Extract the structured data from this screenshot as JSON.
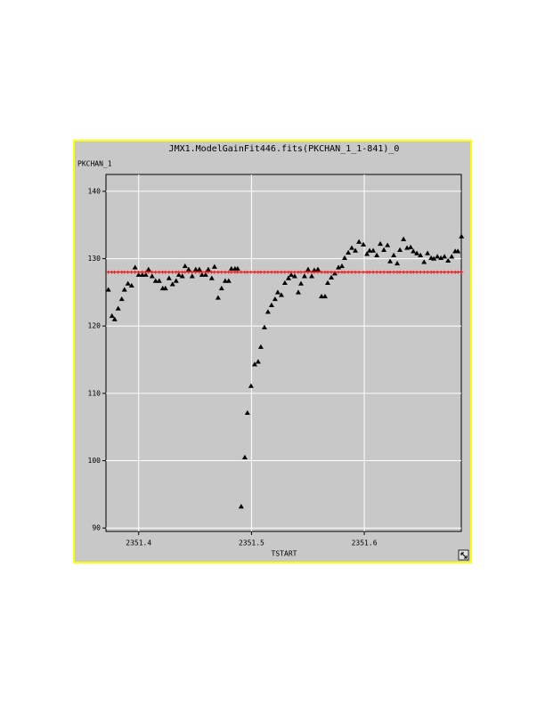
{
  "chart_data": {
    "type": "scatter",
    "title": "JMX1.ModelGainFit446.fits(PKCHAN_1_1-841)_0",
    "ylabel": "PKCHAN_1",
    "xlabel": "TSTART",
    "x": [
      2351.3731,
      2351.3763,
      2351.3787,
      2351.3818,
      2351.385,
      2351.3874,
      2351.3905,
      2351.3937,
      2351.3968,
      2351.4,
      2351.4032,
      2351.4063,
      2351.4087,
      2351.4119,
      2351.415,
      2351.4182,
      2351.4213,
      2351.4237,
      2351.4269,
      2351.43,
      2351.4332,
      2351.4356,
      2351.4387,
      2351.4411,
      2351.4443,
      2351.4474,
      2351.4506,
      2351.4538,
      2351.4561,
      2351.4593,
      2351.4617,
      2351.4648,
      2351.4672,
      2351.4704,
      2351.4735,
      2351.4767,
      2351.4798,
      2351.4822,
      2351.4854,
      2351.4877,
      2351.4909,
      2351.4941,
      2351.4964,
      2351.4996,
      2351.5028,
      2351.5059,
      2351.5083,
      2351.5115,
      2351.5146,
      2351.5178,
      2351.5209,
      2351.5233,
      2351.5265,
      2351.5296,
      2351.5328,
      2351.5352,
      2351.5383,
      2351.5415,
      2351.5439,
      2351.547,
      2351.5502,
      2351.5534,
      2351.5557,
      2351.5589,
      2351.5621,
      2351.5652,
      2351.5676,
      2351.5708,
      2351.5739,
      2351.5771,
      2351.5802,
      2351.5826,
      2351.5858,
      2351.5889,
      2351.5921,
      2351.5953,
      2351.5992,
      2351.6024,
      2351.6047,
      2351.6079,
      2351.6111,
      2351.6142,
      2351.6174,
      2351.6206,
      2351.6229,
      2351.6261,
      2351.6292,
      2351.6316,
      2351.6348,
      2351.6379,
      2351.6411,
      2351.6435,
      2351.6466,
      2351.6498,
      2351.653,
      2351.6561,
      2351.6593,
      2351.6617,
      2351.6648,
      2351.668,
      2351.6711,
      2351.6743,
      2351.6775,
      2351.6806,
      2351.683,
      2351.6862
    ],
    "series": [
      {
        "color": "#000000",
        "marker": "triangle",
        "values": [
          125.4,
          121.5,
          121.0,
          122.6,
          124.0,
          125.4,
          126.3,
          126.0,
          128.7,
          127.6,
          127.6,
          127.6,
          128.4,
          127.4,
          126.7,
          126.7,
          125.6,
          125.6,
          127.1,
          126.2,
          126.7,
          127.6,
          127.4,
          128.9,
          128.4,
          127.4,
          128.4,
          128.4,
          127.6,
          127.6,
          128.4,
          127.1,
          128.8,
          124.2,
          125.6,
          126.7,
          126.7,
          128.5,
          128.5,
          128.5,
          93.2,
          100.5,
          107.1,
          111.1,
          114.3,
          114.7,
          116.9,
          119.8,
          122.1,
          123.1,
          124.0,
          125.0,
          124.6,
          126.4,
          127.1,
          127.6,
          127.4,
          125.0,
          126.3,
          127.4,
          128.4,
          127.4,
          128.3,
          128.4,
          124.4,
          124.4,
          126.4,
          127.2,
          127.8,
          128.7,
          128.9,
          130.1,
          130.9,
          131.6,
          131.2,
          132.5,
          132.1,
          130.7,
          131.2,
          131.2,
          130.5,
          132.2,
          131.3,
          132.0,
          129.6,
          130.5,
          129.3,
          131.3,
          132.9,
          131.6,
          131.7,
          131.1,
          130.8,
          130.5,
          129.5,
          130.8,
          130.1,
          130.0,
          130.3,
          130.1,
          130.3,
          129.7,
          130.3,
          131.1,
          131.1,
          133.3
        ]
      },
      {
        "color": "#ff0000",
        "marker": "plus",
        "line": true,
        "values": [
          128,
          128,
          128,
          128,
          128,
          128,
          128,
          128,
          128,
          128,
          128,
          128,
          128,
          128,
          128,
          128,
          128,
          128,
          128,
          128,
          128,
          128,
          128,
          128,
          128,
          128,
          128,
          128,
          128,
          128,
          128,
          128,
          128,
          128,
          128,
          128,
          128,
          128,
          128,
          128,
          128,
          128,
          128,
          128,
          128,
          128,
          128,
          128,
          128,
          128,
          128,
          128,
          128,
          128,
          128,
          128,
          128,
          128,
          128,
          128,
          128,
          128,
          128,
          128,
          128,
          128,
          128,
          128,
          128,
          128,
          128,
          128,
          128,
          128,
          128,
          128,
          128,
          128,
          128,
          128,
          128,
          128,
          128,
          128,
          128,
          128,
          128,
          128,
          128,
          128,
          128,
          128,
          128,
          128,
          128,
          128,
          128,
          128,
          128,
          128,
          128,
          128,
          128,
          128,
          128,
          128
        ]
      }
    ],
    "xlim": [
      2351.371,
      2351.686
    ],
    "ylim": [
      89.5,
      142.5
    ],
    "xticks": [
      2351.4,
      2351.5,
      2351.6
    ],
    "yticks": [
      90,
      100,
      110,
      120,
      130,
      140
    ],
    "grid": true
  }
}
